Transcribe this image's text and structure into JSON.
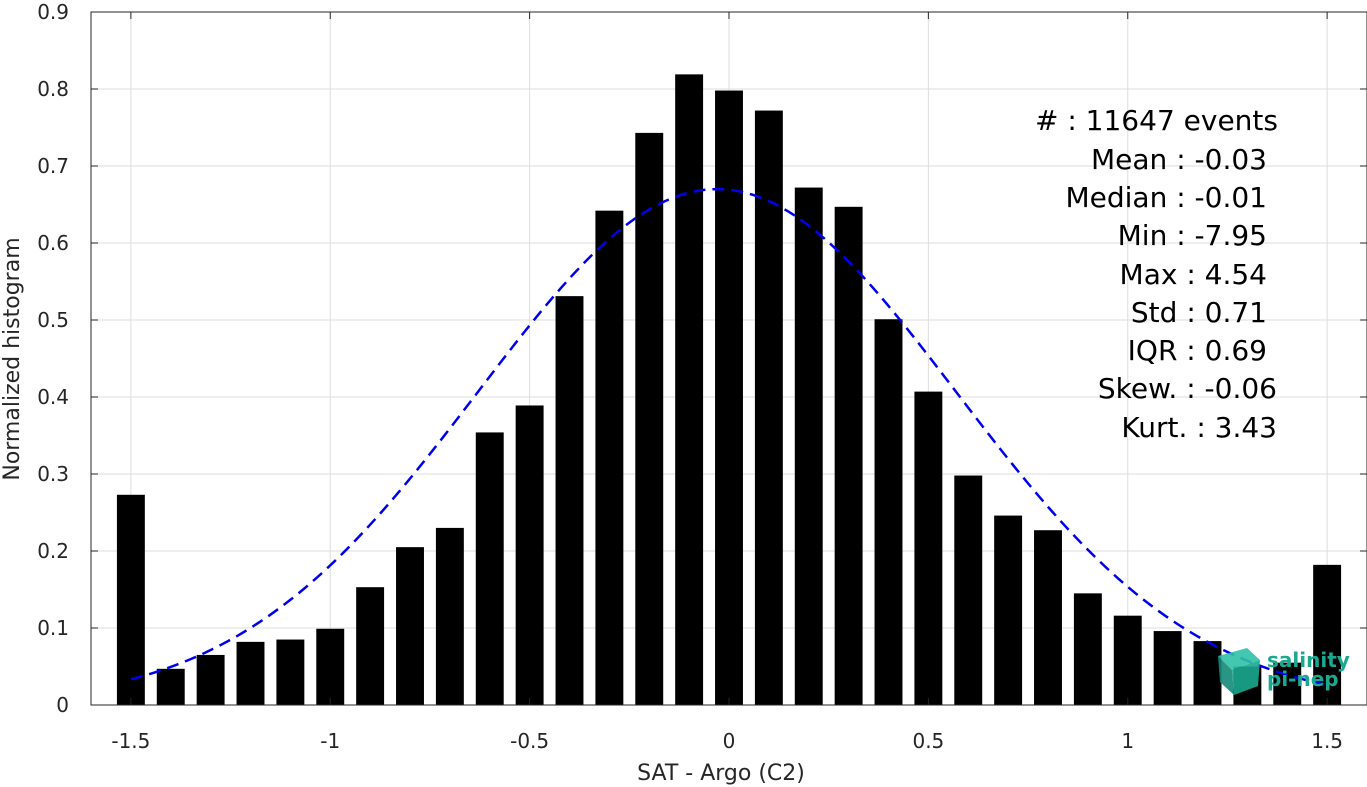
{
  "chart_data": {
    "type": "bar",
    "title": "",
    "xlabel": "SAT - Argo (C2)",
    "ylabel": "Normalized histogram",
    "xlim": [
      -1.6,
      1.6
    ],
    "ylim": [
      0,
      0.9
    ],
    "xticks": [
      -1.5,
      -1,
      -0.5,
      0,
      0.5,
      1,
      1.5
    ],
    "xtick_labels": [
      "-1.5",
      "-1",
      "-0.5",
      "0",
      "0.5",
      "1",
      "1.5"
    ],
    "yticks": [
      0,
      0.1,
      0.2,
      0.3,
      0.4,
      0.5,
      0.6,
      0.7,
      0.8,
      0.9
    ],
    "ytick_labels": [
      "0",
      "0.1",
      "0.2",
      "0.3",
      "0.4",
      "0.5",
      "0.6",
      "0.7",
      "0.8",
      "0.9"
    ],
    "grid": true,
    "bar_width": 0.07,
    "x": [
      -1.5,
      -1.4,
      -1.3,
      -1.2,
      -1.1,
      -1.0,
      -0.9,
      -0.8,
      -0.7,
      -0.6,
      -0.5,
      -0.4,
      -0.3,
      -0.2,
      -0.1,
      0.0,
      0.1,
      0.2,
      0.3,
      0.4,
      0.5,
      0.6,
      0.7,
      0.8,
      0.9,
      1.0,
      1.1,
      1.2,
      1.3,
      1.4,
      1.5
    ],
    "values": [
      0.273,
      0.047,
      0.065,
      0.082,
      0.085,
      0.099,
      0.153,
      0.205,
      0.23,
      0.354,
      0.389,
      0.531,
      0.642,
      0.743,
      0.819,
      0.798,
      0.772,
      0.672,
      0.647,
      0.501,
      0.407,
      0.298,
      0.246,
      0.227,
      0.145,
      0.116,
      0.096,
      0.083,
      0.05,
      0.055,
      0.182
    ],
    "bar_color": "#000000",
    "fit_curve": {
      "style": "dashed",
      "color": "#0000ee",
      "mean": -0.03,
      "std": 0.6,
      "peak": 0.67,
      "x_range": [
        -1.5,
        1.5
      ]
    },
    "stats": {
      "count": "#  : 11647 events",
      "mean": "Mean : -0.03",
      "median": "Median : -0.01",
      "min": "Min : -7.95",
      "max": "Max : 4.54",
      "std": "Std : 0.71",
      "iqr": "IQR : 0.69",
      "skew": "Skew. : -0.06",
      "kurt": "Kurt. : 3.43"
    }
  },
  "logo": {
    "line1": "salinity",
    "line2": "pi-nep",
    "color": "#1aa88f"
  }
}
